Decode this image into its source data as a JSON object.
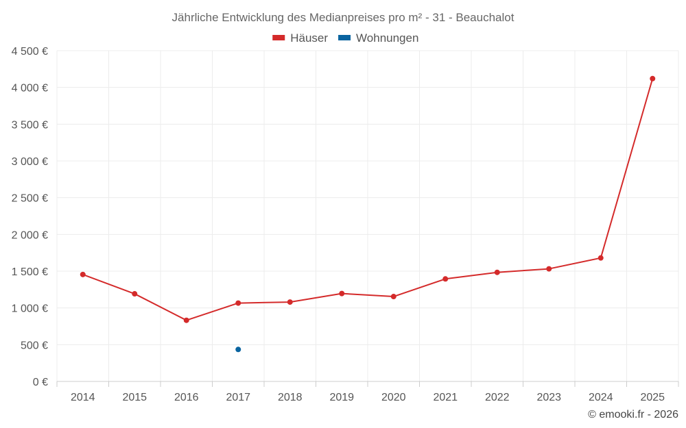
{
  "chart_data": {
    "type": "line",
    "title": "Jährliche Entwicklung des Medianpreises pro m² - 31 - Beauchalot",
    "xlabel": "",
    "ylabel": "",
    "categories": [
      "2014",
      "2015",
      "2016",
      "2017",
      "2018",
      "2019",
      "2020",
      "2021",
      "2022",
      "2023",
      "2024",
      "2025"
    ],
    "series": [
      {
        "name": "Häuser",
        "color": "#d42a2a",
        "values": [
          1455,
          1192,
          832,
          1066,
          1080,
          1196,
          1155,
          1395,
          1484,
          1532,
          1680,
          4120
        ]
      },
      {
        "name": "Wohnungen",
        "color": "#0a64a0",
        "values": [
          null,
          null,
          null,
          435,
          null,
          null,
          null,
          null,
          null,
          null,
          null,
          null
        ]
      }
    ],
    "ylim": [
      0,
      4500
    ],
    "yticks": [
      {
        "value": 0,
        "label": "0 €"
      },
      {
        "value": 500,
        "label": "500 €"
      },
      {
        "value": 1000,
        "label": "1 000 €"
      },
      {
        "value": 1500,
        "label": "1 500 €"
      },
      {
        "value": 2000,
        "label": "2 000 €"
      },
      {
        "value": 2500,
        "label": "2 500 €"
      },
      {
        "value": 3000,
        "label": "3 000 €"
      },
      {
        "value": 3500,
        "label": "3 500 €"
      },
      {
        "value": 4000,
        "label": "4 000 €"
      },
      {
        "value": 4500,
        "label": "4 500 €"
      }
    ],
    "grid": true,
    "legend_position": "top-center",
    "credit": "© emooki.fr - 2026"
  }
}
